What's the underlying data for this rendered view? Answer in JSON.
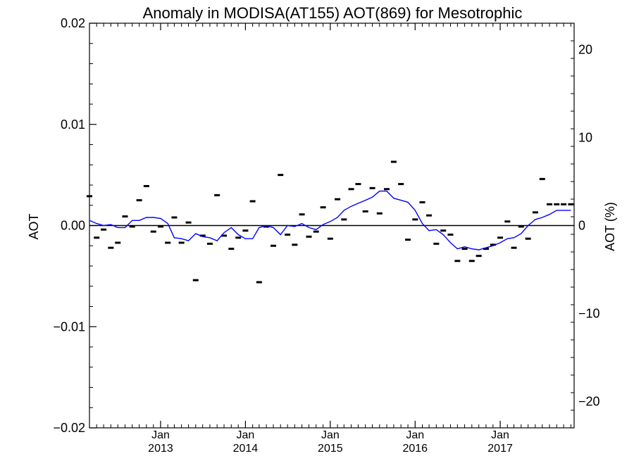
{
  "chart_data": {
    "type": "scatter",
    "title": "Anomaly in MODISA(AT155) AOT(869) for Mesotrophic",
    "ylabel": "AOT",
    "y2label": "AOT (%)",
    "ylim": [
      -0.02,
      0.02
    ],
    "y2lim": [
      -23,
      23
    ],
    "xlim": [
      "2012-03-01",
      "2017-11-15"
    ],
    "yticks": [
      {
        "value": -0.02,
        "label": "−0.02"
      },
      {
        "value": -0.01,
        "label": "−0.01"
      },
      {
        "value": 0.0,
        "label": "0.00"
      },
      {
        "value": 0.01,
        "label": "0.01"
      },
      {
        "value": 0.02,
        "label": "0.02"
      }
    ],
    "y2ticks": [
      {
        "value": -20,
        "label": "−20"
      },
      {
        "value": -10,
        "label": "−10"
      },
      {
        "value": 0,
        "label": "0"
      },
      {
        "value": 10,
        "label": "10"
      },
      {
        "value": 20,
        "label": "20"
      }
    ],
    "xticks": [
      {
        "date": "2013-01-01",
        "month": "Jan",
        "year": "2013"
      },
      {
        "date": "2014-01-01",
        "month": "Jan",
        "year": "2014"
      },
      {
        "date": "2015-01-01",
        "month": "Jan",
        "year": "2015"
      },
      {
        "date": "2016-01-01",
        "month": "Jan",
        "year": "2016"
      },
      {
        "date": "2017-01-01",
        "month": "Jan",
        "year": "2017"
      }
    ],
    "series": [
      {
        "kind": "markers",
        "color": "#000000",
        "x": [
          "2012-03-01",
          "2012-04-01",
          "2012-05-01",
          "2012-06-01",
          "2012-07-01",
          "2012-08-01",
          "2012-09-01",
          "2012-10-01",
          "2012-11-01",
          "2012-12-01",
          "2013-01-01",
          "2013-02-01",
          "2013-03-01",
          "2013-04-01",
          "2013-05-01",
          "2013-06-01",
          "2013-07-01",
          "2013-08-01",
          "2013-09-01",
          "2013-10-01",
          "2013-11-01",
          "2013-12-01",
          "2014-01-01",
          "2014-02-01",
          "2014-03-01",
          "2014-04-01",
          "2014-05-01",
          "2014-06-01",
          "2014-07-01",
          "2014-08-01",
          "2014-09-01",
          "2014-10-01",
          "2014-11-01",
          "2014-12-01",
          "2015-01-01",
          "2015-02-01",
          "2015-03-01",
          "2015-04-01",
          "2015-05-01",
          "2015-06-01",
          "2015-07-01",
          "2015-08-01",
          "2015-09-01",
          "2015-10-01",
          "2015-11-01",
          "2015-12-01",
          "2016-01-01",
          "2016-02-01",
          "2016-03-01",
          "2016-04-01",
          "2016-05-01",
          "2016-06-01",
          "2016-07-01",
          "2016-08-01",
          "2016-09-01",
          "2016-10-01",
          "2016-11-01",
          "2016-12-01",
          "2017-01-01",
          "2017-02-01",
          "2017-03-01",
          "2017-04-01",
          "2017-05-01",
          "2017-06-01",
          "2017-07-01",
          "2017-08-01",
          "2017-09-01",
          "2017-10-01",
          "2017-11-01"
        ],
        "y": [
          0.0029,
          -0.0012,
          -0.0004,
          -0.0022,
          -0.0017,
          0.0009,
          -0.0001,
          0.0025,
          0.0039,
          -0.0006,
          -0.0001,
          -0.0017,
          0.0008,
          -0.0017,
          0.0003,
          -0.0054,
          -0.001,
          -0.0018,
          0.003,
          -0.001,
          -0.0023,
          -0.0012,
          -0.0005,
          0.0024,
          -0.0056,
          -0.0001,
          -0.002,
          0.005,
          -0.0009,
          -0.0019,
          0.0011,
          -0.0011,
          -0.0006,
          0.0018,
          -0.0013,
          0.0026,
          0.0006,
          0.0036,
          0.0041,
          0.0014,
          0.0037,
          0.0012,
          0.0036,
          0.0063,
          0.0041,
          -0.0014,
          0.0006,
          0.0023,
          0.001,
          -0.0018,
          -0.0005,
          -0.0009,
          -0.0035,
          -0.0023,
          -0.0035,
          -0.003,
          -0.0023,
          -0.0019,
          -0.0012,
          0.0004,
          -0.0022,
          -0.0001,
          -0.0013,
          0.0013,
          0.0046,
          0.0021,
          0.0021,
          0.0021,
          0.0021
        ]
      },
      {
        "kind": "line",
        "color": "#0000ff",
        "x": [
          "2012-03-01",
          "2012-04-01",
          "2012-05-01",
          "2012-06-01",
          "2012-07-01",
          "2012-08-01",
          "2012-09-01",
          "2012-10-01",
          "2012-11-01",
          "2012-12-01",
          "2013-01-01",
          "2013-02-01",
          "2013-03-01",
          "2013-04-01",
          "2013-05-01",
          "2013-06-01",
          "2013-07-01",
          "2013-08-01",
          "2013-09-01",
          "2013-10-01",
          "2013-11-01",
          "2013-12-01",
          "2014-01-01",
          "2014-02-01",
          "2014-03-01",
          "2014-04-01",
          "2014-05-01",
          "2014-06-01",
          "2014-07-01",
          "2014-08-01",
          "2014-09-01",
          "2014-10-01",
          "2014-11-01",
          "2014-12-01",
          "2015-01-01",
          "2015-02-01",
          "2015-03-01",
          "2015-04-01",
          "2015-05-01",
          "2015-06-01",
          "2015-07-01",
          "2015-08-01",
          "2015-09-01",
          "2015-10-01",
          "2015-11-01",
          "2015-12-01",
          "2016-01-01",
          "2016-02-01",
          "2016-03-01",
          "2016-04-01",
          "2016-05-01",
          "2016-06-01",
          "2016-07-01",
          "2016-08-01",
          "2016-09-01",
          "2016-10-01",
          "2016-11-01",
          "2016-12-01",
          "2017-01-01",
          "2017-02-01",
          "2017-03-01",
          "2017-04-01",
          "2017-05-01",
          "2017-06-01",
          "2017-07-01",
          "2017-08-01",
          "2017-09-01",
          "2017-10-01",
          "2017-11-01"
        ],
        "y": [
          0.0005,
          0.0002,
          0.0,
          0.0001,
          -0.0002,
          -0.0002,
          0.0005,
          0.0005,
          0.0008,
          0.0008,
          0.0007,
          0.0002,
          -0.0012,
          -0.0013,
          -0.0015,
          -0.0008,
          -0.0011,
          -0.0012,
          -0.0015,
          -0.0007,
          -0.0002,
          -0.0009,
          -0.0013,
          -0.0013,
          -0.0002,
          0.0,
          -0.0002,
          -0.0009,
          0.0,
          -0.0001,
          0.0002,
          -0.0002,
          -0.0004,
          0.0001,
          0.0004,
          0.0008,
          0.0015,
          0.0019,
          0.0022,
          0.0025,
          0.0028,
          0.0034,
          0.0034,
          0.0027,
          0.0025,
          0.0023,
          0.0015,
          0.0002,
          -0.0005,
          -0.0004,
          -0.0009,
          -0.0017,
          -0.0023,
          -0.0021,
          -0.0023,
          -0.0024,
          -0.0022,
          -0.002,
          -0.0017,
          -0.0013,
          -0.0012,
          -0.0008,
          0.0,
          0.0006,
          0.0008,
          0.0011,
          0.0015,
          0.0015,
          0.0015
        ]
      }
    ],
    "zero_line": true,
    "grid": false
  }
}
